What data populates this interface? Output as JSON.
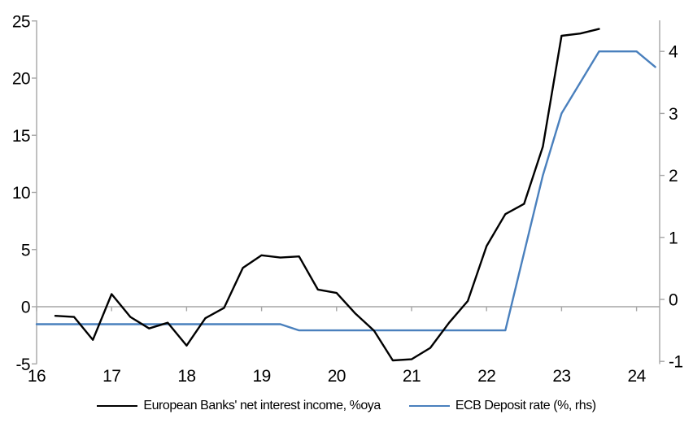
{
  "chart_data": {
    "type": "line",
    "title": "",
    "x_axis": {
      "min": 16,
      "max": 24.35,
      "ticks": [
        16,
        17,
        18,
        19,
        20,
        21,
        22,
        23,
        24
      ],
      "tick_labels": [
        "16",
        "17",
        "18",
        "19",
        "20",
        "21",
        "22",
        "23",
        "24"
      ]
    },
    "left_y_axis": {
      "min": -5,
      "max": 25,
      "ticks": [
        -5,
        0,
        5,
        10,
        15,
        20,
        25
      ],
      "tick_labels": [
        "-5",
        "0",
        "5",
        "10",
        "15",
        "20",
        "25"
      ]
    },
    "right_y_axis": {
      "min": -1,
      "max": 4.5,
      "ticks": [
        -1,
        0,
        1,
        2,
        3,
        4
      ],
      "tick_labels": [
        "-1",
        "0",
        "1",
        "2",
        "3",
        "4"
      ]
    },
    "grid": false,
    "zero_line": true,
    "legend_position": "bottom",
    "series": [
      {
        "name": "European Banks' net interest income, %oya",
        "axis": "left",
        "color": "#000000",
        "x": [
          16.25,
          16.5,
          16.75,
          17.0,
          17.25,
          17.5,
          17.75,
          18.0,
          18.25,
          18.5,
          18.75,
          19.0,
          19.25,
          19.5,
          19.75,
          20.0,
          20.25,
          20.5,
          20.75,
          21.0,
          21.25,
          21.5,
          21.75,
          22.0,
          22.25,
          22.5,
          22.75,
          23.0,
          23.25,
          23.5
        ],
        "values": [
          -0.8,
          -0.9,
          -2.9,
          1.1,
          -0.9,
          -1.9,
          -1.4,
          -3.4,
          -1.0,
          -0.1,
          3.4,
          4.5,
          4.3,
          4.4,
          1.5,
          1.2,
          -0.6,
          -2.1,
          -4.7,
          -4.6,
          -3.6,
          -1.4,
          0.5,
          5.3,
          8.1,
          9.0,
          14.0,
          23.7,
          23.9,
          24.3
        ]
      },
      {
        "name": "ECB Deposit rate (%, rhs)",
        "axis": "right",
        "color": "#4a80bd",
        "x": [
          16.0,
          16.25,
          16.5,
          16.75,
          17.0,
          17.25,
          17.5,
          17.75,
          18.0,
          18.25,
          18.5,
          18.75,
          19.0,
          19.25,
          19.5,
          19.75,
          20.0,
          20.25,
          20.5,
          20.75,
          21.0,
          21.25,
          21.5,
          21.75,
          22.0,
          22.25,
          22.5,
          22.75,
          23.0,
          23.25,
          23.5,
          23.75,
          24.0,
          24.25
        ],
        "values": [
          -0.4,
          -0.4,
          -0.4,
          -0.4,
          -0.4,
          -0.4,
          -0.4,
          -0.4,
          -0.4,
          -0.4,
          -0.4,
          -0.4,
          -0.4,
          -0.4,
          -0.5,
          -0.5,
          -0.5,
          -0.5,
          -0.5,
          -0.5,
          -0.5,
          -0.5,
          -0.5,
          -0.5,
          -0.5,
          -0.5,
          0.75,
          2.0,
          3.0,
          3.5,
          4.0,
          4.0,
          4.0,
          3.75
        ]
      }
    ]
  },
  "colors": {
    "background": "#ffffff",
    "axis_line": "#a6a6a6",
    "zero_line": "#a6a6a6",
    "tick_label": "#000000",
    "series_black": "#000000",
    "series_blue": "#4a80bd"
  }
}
